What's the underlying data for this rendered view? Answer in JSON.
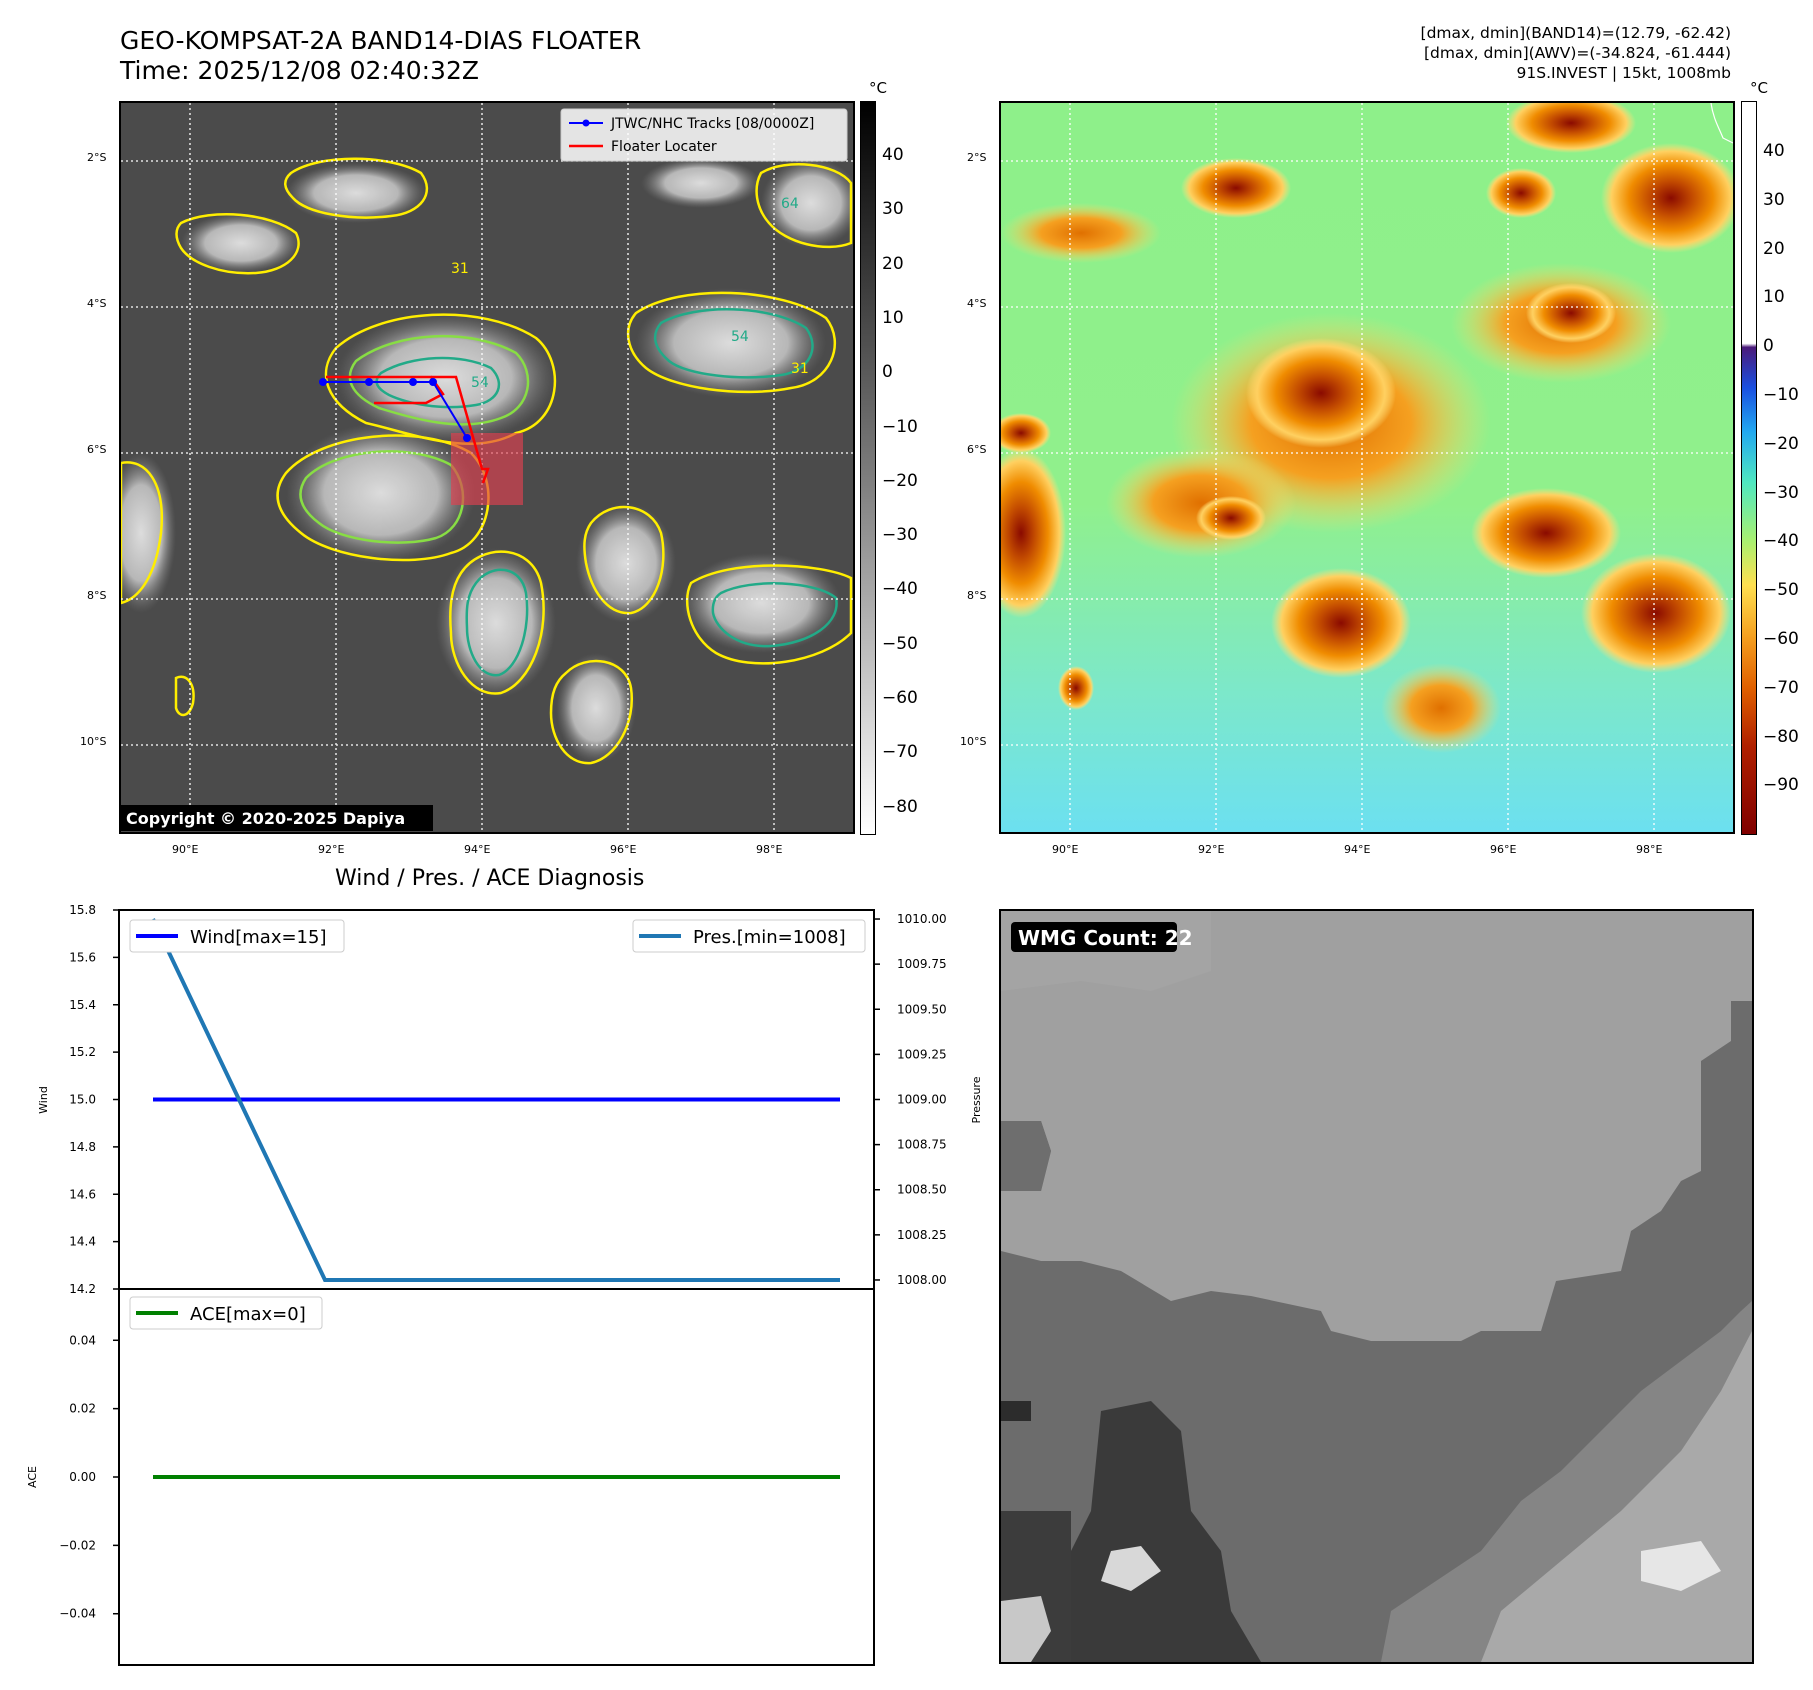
{
  "header": {
    "title_line1": "GEO-KOMPSAT-2A BAND14-DIAS FLOATER",
    "title_line2": "Time: 2025/12/08 02:40:32Z",
    "info_line1": "[dmax, dmin](BAND14)=(12.79, -62.42)",
    "info_line2": "[dmax, dmin](AWV)=(-34.824, -61.444)",
    "info_line3": "91S.INVEST | 15kt, 1008mb"
  },
  "map": {
    "lat_ticks": [
      "2°S",
      "4°S",
      "6°S",
      "8°S",
      "10°S"
    ],
    "lon_ticks": [
      "90°E",
      "92°E",
      "94°E",
      "96°E",
      "98°E"
    ],
    "copyright": "Copyright © 2020-2025 Dapiya",
    "legend_tracks": "JTWC/NHC Tracks [08/0000Z]",
    "legend_locator": "Floater Locater",
    "contour_labels": [
      "54",
      "64",
      "31",
      "54",
      "31"
    ],
    "track_color": "#0000ff",
    "locator_color": "#ff0000",
    "contour_colors": [
      "#ffee00",
      "#88dd44",
      "#22aa88"
    ]
  },
  "colorbar_left": {
    "unit": "°C",
    "ticks": [
      "40",
      "30",
      "20",
      "10",
      "0",
      "−10",
      "−20",
      "−30",
      "−40",
      "−50",
      "−60",
      "−70",
      "−80"
    ]
  },
  "colorbar_right": {
    "unit": "°C",
    "ticks": [
      "40",
      "30",
      "20",
      "10",
      "0",
      "−10",
      "−20",
      "−30",
      "−40",
      "−50",
      "−60",
      "−70",
      "−80",
      "−90"
    ]
  },
  "chart_data": [
    {
      "type": "line",
      "title": "Wind / Pres. / ACE Diagnosis",
      "ylabel": "Wind",
      "ylim": [
        14.2,
        15.8
      ],
      "yticks": [
        "15.8",
        "15.6",
        "15.4",
        "15.2",
        "15.0",
        "14.8",
        "14.6",
        "14.4",
        "14.2"
      ],
      "series": [
        {
          "name": "Wind[max=15]",
          "color": "#0000ff",
          "values": [
            15,
            15
          ]
        }
      ]
    },
    {
      "type": "line",
      "ylabel": "Pressure",
      "ylim": [
        1007.95,
        1010.05
      ],
      "yticks": [
        "1010.00",
        "1009.75",
        "1009.50",
        "1009.25",
        "1009.00",
        "1008.75",
        "1008.50",
        "1008.25",
        "1008.00"
      ],
      "series": [
        {
          "name": "Pres.[min=1008]",
          "color": "#1f77b4",
          "values": [
            1010,
            1008,
            1008
          ]
        }
      ]
    },
    {
      "type": "line",
      "ylabel": "ACE",
      "ylim": [
        -0.055,
        0.055
      ],
      "yticks": [
        "0.04",
        "0.02",
        "0.00",
        "−0.02",
        "−0.04"
      ],
      "series": [
        {
          "name": "ACE[max=0]",
          "color": "#008000",
          "values": [
            0,
            0
          ]
        }
      ]
    }
  ],
  "wmg": {
    "label": "WMG Count: 22"
  }
}
